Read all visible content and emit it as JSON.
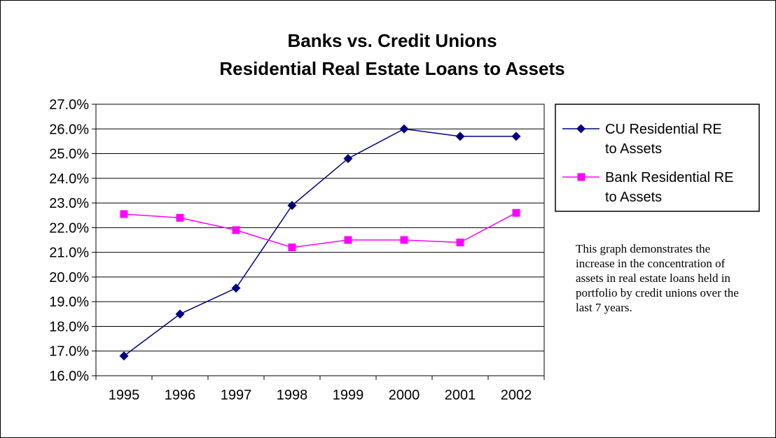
{
  "chart_data": {
    "type": "line",
    "title": [
      "Banks vs. Credit Unions",
      "Residential Real Estate Loans to Assets"
    ],
    "xlabel": "",
    "ylabel": "",
    "categories": [
      "1995",
      "1996",
      "1997",
      "1998",
      "1999",
      "2000",
      "2001",
      "2002"
    ],
    "ylim": [
      16.0,
      27.0
    ],
    "yticks": [
      "16.0%",
      "17.0%",
      "18.0%",
      "19.0%",
      "20.0%",
      "21.0%",
      "22.0%",
      "23.0%",
      "24.0%",
      "25.0%",
      "26.0%",
      "27.0%"
    ],
    "grid": "horizontal",
    "legend_position": "right",
    "series": [
      {
        "name": [
          "CU Residential RE",
          "to Assets"
        ],
        "marker": "diamond",
        "color": "#000080",
        "values": [
          16.8,
          18.5,
          19.55,
          22.9,
          24.8,
          26.0,
          25.7,
          25.7
        ]
      },
      {
        "name": [
          "Bank Residential RE",
          "to Assets"
        ],
        "marker": "square",
        "color": "#FF00FF",
        "values": [
          22.55,
          22.4,
          21.9,
          21.2,
          21.5,
          21.5,
          21.4,
          22.6
        ]
      }
    ],
    "annotation": "This graph demonstrates the increase in the concentration of assets in real estate loans held in portfolio by credit unions over the last 7 years."
  }
}
